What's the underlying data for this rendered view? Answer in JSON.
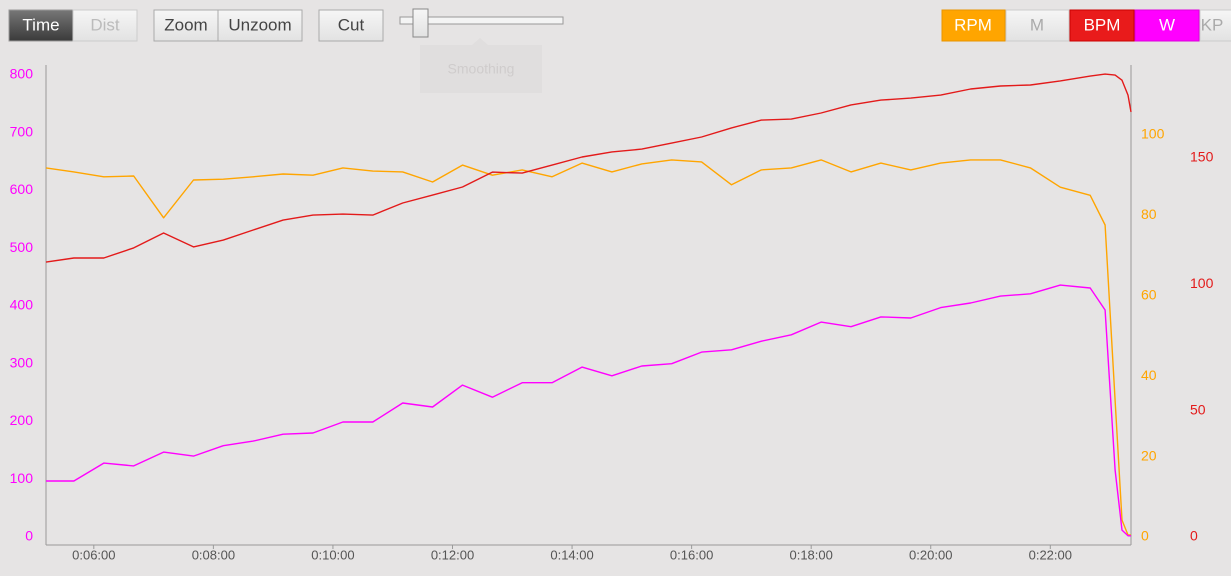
{
  "toolbar": {
    "time": "Time",
    "dist": "Dist",
    "zoom": "Zoom",
    "unzoom": "Unzoom",
    "cut": "Cut",
    "smoothing": "Smoothing",
    "m": "M",
    "kp": "KP"
  },
  "chart_data": {
    "type": "line",
    "x": [
      312,
      340,
      370,
      400,
      430,
      460,
      490,
      520,
      550,
      580,
      610,
      640,
      670,
      700,
      730,
      760,
      790,
      820,
      850,
      880,
      910,
      940,
      970,
      1000,
      1030,
      1060,
      1090,
      1120,
      1150,
      1180,
      1210,
      1240,
      1270,
      1300,
      1330,
      1360,
      1375,
      1385,
      1392,
      1398,
      1401
    ],
    "xlim": [
      312,
      1401
    ],
    "xticks": [
      {
        "value": 360,
        "label": "0:06:00"
      },
      {
        "value": 480,
        "label": "0:08:00"
      },
      {
        "value": 600,
        "label": "0:10:00"
      },
      {
        "value": 720,
        "label": "0:12:00"
      },
      {
        "value": 840,
        "label": "0:14:00"
      },
      {
        "value": 960,
        "label": "0:16:00"
      },
      {
        "value": 1080,
        "label": "0:18:00"
      },
      {
        "value": 1200,
        "label": "0:20:00"
      },
      {
        "value": 1320,
        "label": "0:22:00"
      }
    ],
    "ylim": [
      0,
      817
    ],
    "yticks": [
      0,
      100,
      200,
      300,
      400,
      500,
      600,
      700,
      800
    ],
    "y2lim": [
      0,
      117.4
    ],
    "y2ticks": [
      0,
      20,
      40,
      60,
      80,
      100
    ],
    "y3lim": [
      0,
      186.8
    ],
    "y3ticks": [
      0,
      50,
      100,
      150
    ],
    "series": [
      {
        "name": "RPM",
        "color": "#ffa500",
        "axis": "y2",
        "values": [
          91.8,
          90.8,
          89.6,
          89.8,
          79.4,
          88.8,
          89,
          89.6,
          90.3,
          90,
          91.8,
          91,
          90.8,
          88.3,
          92.5,
          90,
          91.3,
          89.6,
          93,
          90.8,
          92.8,
          93.8,
          93.3,
          87.6,
          91.3,
          91.8,
          93.8,
          90.8,
          93,
          91.3,
          93,
          93.8,
          93.8,
          91.8,
          87,
          85,
          77.6,
          34,
          4.2,
          0.5,
          0.5
        ]
      },
      {
        "name": "BPM",
        "color": "#e31a1a",
        "axis": "y3",
        "values": [
          108.8,
          110.4,
          110.4,
          114.4,
          120.3,
          114.8,
          117.5,
          121.5,
          125.4,
          127.4,
          127.8,
          127.4,
          132.2,
          135.3,
          138.5,
          144.4,
          144,
          147.2,
          150.4,
          152.4,
          153.5,
          155.9,
          158.3,
          161.9,
          165,
          165.4,
          167.8,
          171,
          172.9,
          173.7,
          174.9,
          177.3,
          178.5,
          178.9,
          180.5,
          182.4,
          183.2,
          182.8,
          180.8,
          174.9,
          168.2
        ]
      },
      {
        "name": "W",
        "color": "#ff00ff",
        "axis": "y",
        "values": [
          97,
          97,
          128,
          123,
          147,
          140,
          158,
          166,
          178,
          180,
          199,
          199,
          232,
          225,
          263,
          242,
          267,
          267,
          294,
          279,
          296,
          300,
          320,
          324,
          339,
          350,
          372,
          364,
          381,
          379,
          397,
          405,
          417,
          421,
          436,
          431,
          393,
          116,
          12,
          2,
          2
        ]
      }
    ]
  }
}
